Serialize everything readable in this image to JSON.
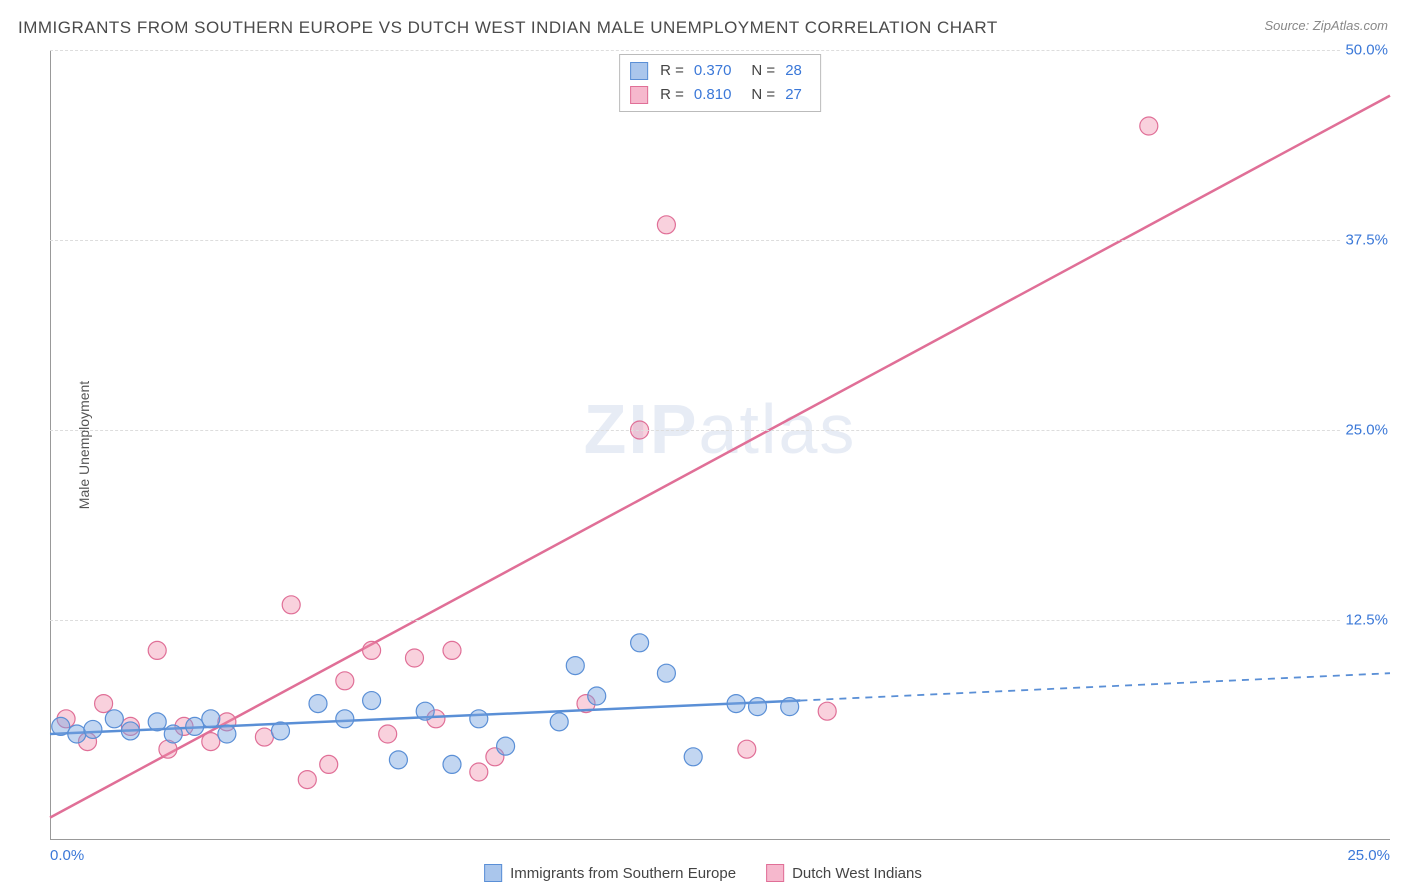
{
  "title": "IMMIGRANTS FROM SOUTHERN EUROPE VS DUTCH WEST INDIAN MALE UNEMPLOYMENT CORRELATION CHART",
  "source": "Source: ZipAtlas.com",
  "y_axis_label": "Male Unemployment",
  "watermark": {
    "bold": "ZIP",
    "rest": "atlas"
  },
  "chart": {
    "type": "scatter-with-regression",
    "xlim": [
      0,
      25
    ],
    "ylim": [
      0,
      50
    ],
    "x_ticks": [
      0,
      25
    ],
    "x_tick_labels": [
      "0.0%",
      "25.0%"
    ],
    "y_ticks": [
      12.5,
      25.0,
      37.5,
      50.0
    ],
    "y_tick_labels": [
      "12.5%",
      "25.0%",
      "37.5%",
      "50.0%"
    ],
    "grid_color": "#dddddd",
    "background_color": "#ffffff",
    "series": [
      {
        "name": "Immigrants from Southern Europe",
        "short": "blue",
        "color_fill": "rgba(120,165,225,0.45)",
        "color_stroke": "#5a8fd6",
        "swatch_fill": "#aac6ec",
        "swatch_border": "#5a8fd6",
        "R": "0.370",
        "N": "28",
        "marker_radius": 9,
        "points": [
          [
            0.2,
            5.5
          ],
          [
            0.5,
            5.0
          ],
          [
            0.8,
            5.3
          ],
          [
            1.2,
            6.0
          ],
          [
            1.5,
            5.2
          ],
          [
            2.0,
            5.8
          ],
          [
            2.3,
            5.0
          ],
          [
            2.7,
            5.5
          ],
          [
            3.0,
            6.0
          ],
          [
            3.3,
            5.0
          ],
          [
            4.3,
            5.2
          ],
          [
            5.0,
            7.0
          ],
          [
            5.5,
            6.0
          ],
          [
            6.0,
            7.2
          ],
          [
            6.5,
            3.3
          ],
          [
            7.0,
            6.5
          ],
          [
            7.5,
            3.0
          ],
          [
            8.0,
            6.0
          ],
          [
            8.5,
            4.2
          ],
          [
            9.5,
            5.8
          ],
          [
            9.8,
            9.5
          ],
          [
            10.2,
            7.5
          ],
          [
            11.0,
            11.0
          ],
          [
            11.5,
            9.0
          ],
          [
            12.0,
            3.5
          ],
          [
            12.8,
            7.0
          ],
          [
            13.2,
            6.8
          ],
          [
            13.8,
            6.8
          ]
        ],
        "regression": {
          "x1": 0,
          "y1": 5.0,
          "x2": 14,
          "y2": 7.2,
          "extend_to_x": 25,
          "extend_y": 9.0,
          "solid_end_x": 14
        }
      },
      {
        "name": "Dutch West Indians",
        "short": "pink",
        "color_fill": "rgba(240,140,170,0.40)",
        "color_stroke": "#e06f97",
        "swatch_fill": "#f6b8cd",
        "swatch_border": "#e06f97",
        "R": "0.810",
        "N": "27",
        "marker_radius": 9,
        "points": [
          [
            0.3,
            6.0
          ],
          [
            0.7,
            4.5
          ],
          [
            1.0,
            7.0
          ],
          [
            1.5,
            5.5
          ],
          [
            2.0,
            10.5
          ],
          [
            2.2,
            4.0
          ],
          [
            2.5,
            5.5
          ],
          [
            3.0,
            4.5
          ],
          [
            3.3,
            5.8
          ],
          [
            4.0,
            4.8
          ],
          [
            4.5,
            13.5
          ],
          [
            4.8,
            2.0
          ],
          [
            5.2,
            3.0
          ],
          [
            5.5,
            8.5
          ],
          [
            6.0,
            10.5
          ],
          [
            6.3,
            5.0
          ],
          [
            6.8,
            10.0
          ],
          [
            7.2,
            6.0
          ],
          [
            7.5,
            10.5
          ],
          [
            8.0,
            2.5
          ],
          [
            8.3,
            3.5
          ],
          [
            10.0,
            7.0
          ],
          [
            11.0,
            25.0
          ],
          [
            11.5,
            38.5
          ],
          [
            13.0,
            4.0
          ],
          [
            14.5,
            6.5
          ],
          [
            20.5,
            45.0
          ]
        ],
        "regression": {
          "x1": 0,
          "y1": -0.5,
          "x2": 25,
          "y2": 47.0,
          "solid_end_x": 25
        }
      }
    ],
    "legend_stats_labels": {
      "R": "R =",
      "N": "N ="
    },
    "bottom_legend_labels": [
      "Immigrants from Southern Europe",
      "Dutch West Indians"
    ]
  }
}
